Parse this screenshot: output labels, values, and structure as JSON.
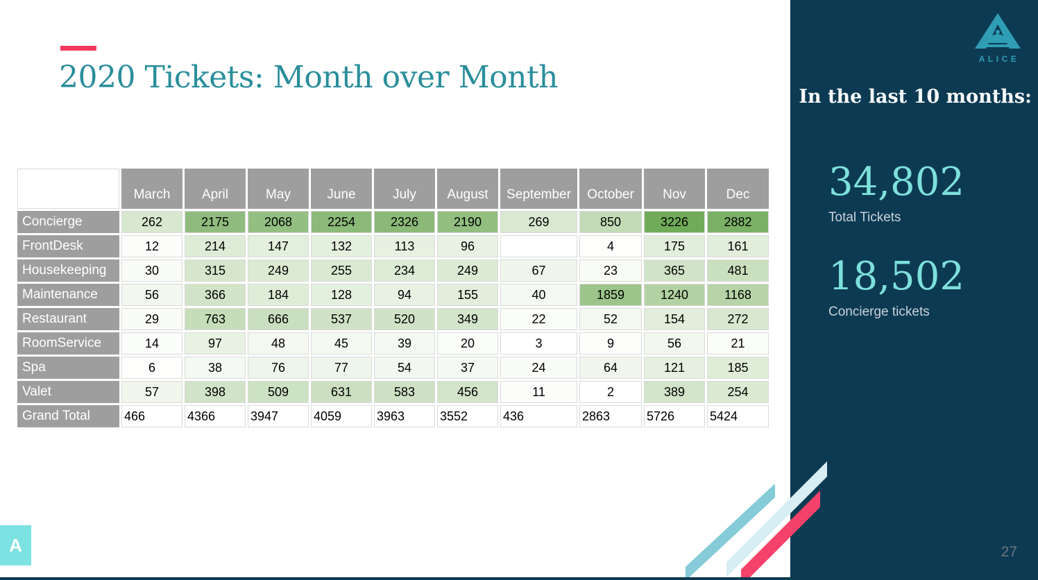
{
  "slide": {
    "title": "2020 Tickets: Month over Month",
    "page_number": "27",
    "corner_badge": "A"
  },
  "table": {
    "columns": [
      "March",
      "April",
      "May",
      "June",
      "July",
      "August",
      "September",
      "October",
      "Nov",
      "Dec"
    ],
    "rows": [
      {
        "label": "Concierge",
        "values": [
          "262",
          "2175",
          "2068",
          "2254",
          "2326",
          "2190",
          "269",
          "850",
          "3226",
          "2882"
        ],
        "colors": [
          "#d8e8d0",
          "#8fbc7e",
          "#93bf82",
          "#8cba79",
          "#8bb978",
          "#92be80",
          "#d9e8d1",
          "#c2dbb6",
          "#70ab59",
          "#7bb166"
        ]
      },
      {
        "label": "FrontDesk",
        "values": [
          "12",
          "214",
          "147",
          "132",
          "113",
          "96",
          "",
          "4",
          "175",
          "161"
        ],
        "colors": [
          "#fcfdfb",
          "#deecd7",
          "#e3efdd",
          "#e4f0de",
          "#e6f1e1",
          "#e8f2e3",
          "#ffffff",
          "#fefefd",
          "#e1eedb",
          "#e2eedc"
        ]
      },
      {
        "label": "Housekeeping",
        "values": [
          "30",
          "315",
          "249",
          "255",
          "234",
          "249",
          "67",
          "23",
          "365",
          "481"
        ],
        "colors": [
          "#f8fbf6",
          "#d5e6cc",
          "#dbead3",
          "#daead2",
          "#dcebd5",
          "#dbead3",
          "#eff5eb",
          "#f9fbf7",
          "#d2e4c8",
          "#cadfbe"
        ]
      },
      {
        "label": "Maintenance",
        "values": [
          "56",
          "366",
          "184",
          "128",
          "94",
          "155",
          "40",
          "1859",
          "1240",
          "1168"
        ],
        "colors": [
          "#f2f7ef",
          "#d1e4c8",
          "#dfedd8",
          "#e4f0de",
          "#e8f2e3",
          "#e2eedb",
          "#f5f9f3",
          "#9cc48b",
          "#b3d2a3",
          "#b6d4a7"
        ]
      },
      {
        "label": "Restaurant",
        "values": [
          "29",
          "763",
          "666",
          "537",
          "520",
          "349",
          "22",
          "52",
          "154",
          "272"
        ],
        "colors": [
          "#f8fbf6",
          "#c6ddba",
          "#cadfbf",
          "#d0e2c6",
          "#d1e3c7",
          "#d3e5ca",
          "#fafcf8",
          "#f3f8f0",
          "#e2eedb",
          "#d8e7cf"
        ]
      },
      {
        "label": "RoomService",
        "values": [
          "14",
          "97",
          "48",
          "45",
          "39",
          "20",
          "3",
          "9",
          "56",
          "21"
        ],
        "colors": [
          "#fbfdfa",
          "#e8f2e3",
          "#f4f8f1",
          "#f4f9f2",
          "#f5f9f3",
          "#fafcf9",
          "#fefffe",
          "#fdfdfc",
          "#f2f7ef",
          "#fafcf8"
        ]
      },
      {
        "label": "Spa",
        "values": [
          "6",
          "38",
          "76",
          "77",
          "54",
          "37",
          "24",
          "64",
          "121",
          "185"
        ],
        "colors": [
          "#fefefd",
          "#f5f9f3",
          "#eef5ea",
          "#eef5ea",
          "#f2f8ef",
          "#f5f9f3",
          "#f9fbf7",
          "#f0f6ed",
          "#e5f0e0",
          "#dfedd8"
        ]
      },
      {
        "label": "Valet",
        "values": [
          "57",
          "398",
          "509",
          "631",
          "583",
          "456",
          "11",
          "2",
          "389",
          "254"
        ],
        "colors": [
          "#f2f7ee",
          "#d1e3c8",
          "#cde1c3",
          "#cce0c1",
          "#cee1c4",
          "#d2e4c9",
          "#fcfdfb",
          "#ffffff",
          "#d2e4c9",
          "#daead2"
        ]
      },
      {
        "label": "Grand Total",
        "is_total": true,
        "values": [
          "466",
          "4366",
          "3947",
          "4059",
          "3963",
          "3552",
          "436",
          "2863",
          "5726",
          "5424"
        ],
        "colors": [
          "#ffffff",
          "#ffffff",
          "#ffffff",
          "#ffffff",
          "#ffffff",
          "#ffffff",
          "#ffffff",
          "#ffffff",
          "#ffffff",
          "#ffffff"
        ]
      }
    ]
  },
  "sidebar": {
    "logo_text": "ALICE",
    "heading": "In the last 10 months:",
    "stats": [
      {
        "value": "34,802",
        "label": "Total Tickets"
      },
      {
        "value": "18,502",
        "label": "Concierge tickets"
      }
    ]
  },
  "colors": {
    "navy": "#0d3a53",
    "title_teal": "#2a8e9b",
    "accent_pink": "#f23a5e",
    "header_gray": "#9e9e9e",
    "grid_gray": "#d9d9d9",
    "stat_teal": "#7de0db",
    "stat_label_gray": "#c9d3d9",
    "logo_teal": "#2f9db4",
    "badge_teal": "#7de2e2",
    "page_gray": "#6e7780",
    "stripe_blue": "#85cbd8",
    "stripe_pale": "#d7eef4",
    "stripe_pink": "#f4426a"
  }
}
